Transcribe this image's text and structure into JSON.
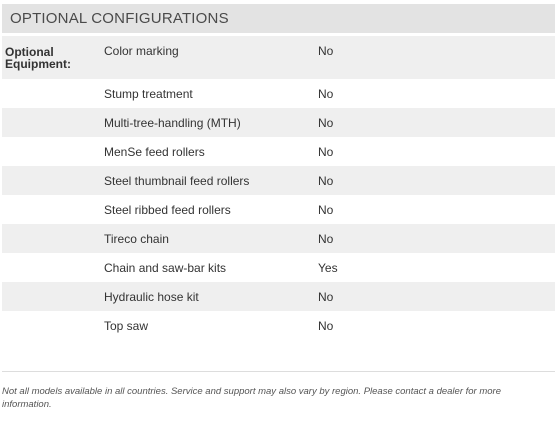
{
  "section": {
    "title": "OPTIONAL CONFIGURATIONS"
  },
  "group": {
    "label_line1": "Optional",
    "label_line2": "Equipment:"
  },
  "rows": [
    {
      "label": "Color marking",
      "value": "No"
    },
    {
      "label": "Stump treatment",
      "value": "No"
    },
    {
      "label": "Multi-tree-handling (MTH)",
      "value": "No"
    },
    {
      "label": "MenSe feed rollers",
      "value": "No"
    },
    {
      "label": "Steel thumbnail feed rollers",
      "value": "No"
    },
    {
      "label": "Steel ribbed feed rollers",
      "value": "No"
    },
    {
      "label": "Tireco chain",
      "value": "No"
    },
    {
      "label": "Chain and saw-bar kits",
      "value": "Yes"
    },
    {
      "label": "Hydraulic hose kit",
      "value": "No"
    },
    {
      "label": "Top saw",
      "value": "No"
    }
  ],
  "footnote": "Not all models available in all countries. Service and support may also vary by region. Please contact a dealer for more information.",
  "colors": {
    "header_bg": "#e3e3e3",
    "row_shade": "#efefef"
  }
}
